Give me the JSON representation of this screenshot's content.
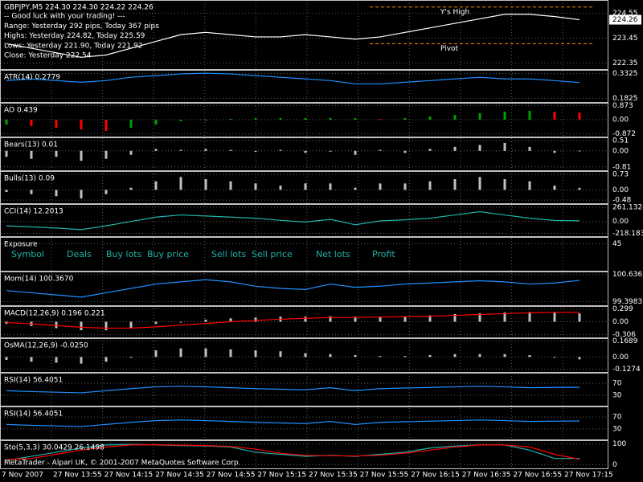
{
  "chart_data": [
    {
      "type": "line",
      "title": "GBPJPY,M5  224.30 224.30 224.22 224.26",
      "annotations": [
        "-- Good luck with your trading! ---",
        "Range: Yesterday 292 pips, Today 367 pips",
        "Highs: Yesterday 224.82, Today 225.59",
        "Lows: Yesterday 221.90, Today 221.92",
        "Close: Yesterday 222.54"
      ],
      "levels": [
        {
          "name": "Y's High",
          "value": 224.82,
          "color": "#ff8c00"
        },
        {
          "name": "Pivot",
          "value": 223.2,
          "color": "#ff8c00"
        }
      ],
      "last_price": 224.26,
      "ylim": [
        222.15,
        225.06
      ],
      "yticks": [
        224.55,
        223.45,
        222.35
      ],
      "series": [
        {
          "style": "line",
          "color": "#ffffff",
          "values": [
            223.2,
            223.0,
            222.8,
            222.6,
            222.7,
            223.0,
            223.3,
            223.6,
            223.7,
            223.6,
            223.5,
            223.5,
            223.6,
            223.5,
            223.4,
            223.5,
            223.7,
            223.9,
            224.1,
            224.3,
            224.5,
            224.5,
            224.4,
            224.26
          ]
        }
      ]
    },
    {
      "type": "line",
      "title": "ATR(14) 0.2779",
      "ylim": [
        0.17,
        0.345
      ],
      "yticks": [
        0.3325,
        0.1825
      ],
      "series": [
        {
          "style": "line",
          "color": "#1e90ff",
          "values": [
            0.29,
            0.3,
            0.29,
            0.28,
            0.29,
            0.31,
            0.32,
            0.33,
            0.335,
            0.33,
            0.32,
            0.31,
            0.3,
            0.29,
            0.27,
            0.27,
            0.28,
            0.29,
            0.3,
            0.31,
            0.3,
            0.3,
            0.29,
            0.2779
          ]
        }
      ]
    },
    {
      "type": "bar",
      "title": "AO 0.439",
      "ylim": [
        -0.95,
        0.95
      ],
      "yticks": [
        0.873,
        {
          "value": 0,
          "label": "0.00"
        },
        -0.872
      ],
      "series": [
        {
          "style": "bar",
          "up_color": "#00a000",
          "down_color": "#ff0000",
          "values": [
            -0.3,
            -0.4,
            -0.5,
            -0.6,
            -0.7,
            -0.5,
            -0.3,
            -0.1,
            0,
            0.05,
            0.1,
            0.1,
            0.1,
            0.1,
            0.1,
            0.05,
            0.1,
            0.2,
            0.3,
            0.4,
            0.5,
            0.55,
            0.5,
            0.439
          ]
        }
      ]
    },
    {
      "type": "bar",
      "title": "Bears(13) 0.01",
      "ylim": [
        -0.9,
        0.6
      ],
      "yticks": [
        0.51,
        {
          "value": 0,
          "label": "0.00"
        },
        -0.81
      ],
      "series": [
        {
          "style": "bar",
          "color": "#c0c0c0",
          "values": [
            -0.3,
            -0.4,
            -0.3,
            -0.5,
            -0.4,
            -0.2,
            0.1,
            0.05,
            0.1,
            0.05,
            -0.05,
            0.05,
            -0.1,
            0.0,
            -0.2,
            0.05,
            -0.1,
            0.1,
            0.2,
            0.3,
            0.4,
            0.2,
            -0.1,
            0.01
          ]
        }
      ]
    },
    {
      "type": "bar",
      "title": "Bulls(13) 0.09",
      "ylim": [
        -0.55,
        0.8
      ],
      "yticks": [
        0.73,
        {
          "value": 0,
          "label": "0.00"
        },
        -0.48
      ],
      "series": [
        {
          "style": "bar",
          "color": "#c0c0c0",
          "values": [
            -0.1,
            -0.2,
            -0.3,
            -0.4,
            -0.2,
            0.1,
            0.4,
            0.6,
            0.5,
            0.4,
            0.3,
            0.2,
            0.3,
            0.3,
            0.1,
            0.3,
            0.3,
            0.4,
            0.5,
            0.6,
            0.5,
            0.4,
            0.2,
            0.09
          ]
        }
      ]
    },
    {
      "type": "line",
      "title": "CCI(14) 12.2013",
      "ylim": [
        -240,
        290
      ],
      "yticks": [
        261.1324,
        {
          "value": 0,
          "label": "0.00"
        },
        -218.183
      ],
      "series": [
        {
          "style": "line",
          "color": "#20b2aa",
          "values": [
            -80,
            -100,
            -120,
            -150,
            -80,
            0,
            80,
            120,
            100,
            80,
            60,
            20,
            -10,
            40,
            -60,
            10,
            30,
            60,
            120,
            180,
            120,
            60,
            20,
            12.2013
          ]
        }
      ]
    },
    {
      "type": "table",
      "title": "Exposure",
      "columns": [
        "Symbol",
        "Deals",
        "Buy lots",
        "Buy price",
        "Sell lots",
        "Sell price",
        "Net lots",
        "Profit"
      ],
      "ylim": [
        -5,
        55
      ],
      "yticks": [
        45
      ]
    },
    {
      "type": "line",
      "title": "Mom(14) 100.3670",
      "ylim": [
        99.3,
        100.7
      ],
      "yticks": [
        100.6361,
        99.3983
      ],
      "series": [
        {
          "style": "line",
          "color": "#1e90ff",
          "values": [
            99.9,
            99.8,
            99.7,
            99.6,
            99.8,
            100.0,
            100.2,
            100.3,
            100.4,
            100.3,
            100.1,
            100.0,
            99.95,
            100.2,
            100.05,
            100.1,
            100.2,
            100.25,
            100.3,
            100.35,
            100.3,
            100.2,
            100.25,
            100.367
          ]
        }
      ]
    },
    {
      "type": "bar",
      "title": "MACD(12,26,9) 0.196 0.221",
      "ylim": [
        -0.33,
        0.33
      ],
      "yticks": [
        0.299,
        {
          "value": 0,
          "label": "0.00"
        },
        -0.306
      ],
      "series": [
        {
          "style": "bar",
          "color": "#c0c0c0",
          "values": [
            -0.05,
            -0.1,
            -0.15,
            -0.2,
            -0.2,
            -0.15,
            -0.05,
            0,
            0.05,
            0.08,
            0.1,
            0.12,
            0.12,
            0.13,
            0.12,
            0.12,
            0.13,
            0.15,
            0.18,
            0.2,
            0.22,
            0.23,
            0.22,
            0.196
          ]
        },
        {
          "style": "line",
          "color": "#ff0000",
          "values": [
            -0.02,
            -0.05,
            -0.09,
            -0.13,
            -0.15,
            -0.15,
            -0.12,
            -0.08,
            -0.04,
            0,
            0.03,
            0.06,
            0.08,
            0.1,
            0.1,
            0.11,
            0.12,
            0.13,
            0.15,
            0.17,
            0.19,
            0.21,
            0.22,
            0.221
          ]
        }
      ]
    },
    {
      "type": "bar",
      "title": "OsMA(12,26,9) -0.0250",
      "ylim": [
        -0.14,
        0.18
      ],
      "yticks": [
        0.1689,
        {
          "value": 0,
          "label": "0.00"
        },
        -0.1274
      ],
      "series": [
        {
          "style": "bar",
          "color": "#c0c0c0",
          "values": [
            -0.03,
            -0.05,
            -0.06,
            -0.07,
            -0.05,
            0,
            0.07,
            0.09,
            0.09,
            0.08,
            0.07,
            0.06,
            0.04,
            0.03,
            0.02,
            0.01,
            0.01,
            0.02,
            0.03,
            0.03,
            0.03,
            0.02,
            0,
            -0.025
          ]
        }
      ]
    },
    {
      "type": "line",
      "title": "RSI(14) 56.4051",
      "ylim": [
        0,
        100
      ],
      "yticks": [
        70,
        30
      ],
      "series": [
        {
          "style": "line",
          "color": "#1e90ff",
          "values": [
            45,
            42,
            40,
            38,
            45,
            52,
            58,
            60,
            58,
            55,
            52,
            50,
            48,
            55,
            45,
            52,
            54,
            56,
            58,
            60,
            58,
            55,
            56,
            56.4051
          ]
        }
      ]
    },
    {
      "type": "line",
      "title": "RSI(14) 56.4051",
      "ylim": [
        0,
        100
      ],
      "yticks": [
        70,
        30
      ],
      "series": [
        {
          "style": "line",
          "color": "#1e90ff",
          "values": [
            45,
            42,
            40,
            38,
            45,
            52,
            58,
            60,
            58,
            55,
            52,
            50,
            48,
            55,
            45,
            52,
            54,
            56,
            58,
            60,
            58,
            55,
            56,
            56.4051
          ]
        }
      ]
    },
    {
      "type": "line",
      "title": "Sto(5,3,3) 30.0429 26.1498",
      "ylim": [
        -10,
        110
      ],
      "yticks": [
        100,
        0
      ],
      "series": [
        {
          "style": "line",
          "color": "#20b2aa",
          "values": [
            20,
            40,
            60,
            80,
            95,
            98,
            95,
            92,
            90,
            85,
            60,
            50,
            40,
            45,
            40,
            50,
            60,
            80,
            90,
            95,
            95,
            70,
            30,
            30.0429
          ]
        },
        {
          "style": "line",
          "color": "#ff0000",
          "values": [
            25,
            30,
            50,
            70,
            85,
            95,
            96,
            94,
            92,
            88,
            75,
            55,
            45,
            43,
            42,
            45,
            55,
            70,
            85,
            95,
            95,
            85,
            50,
            26.1498
          ]
        }
      ]
    }
  ],
  "time_axis": {
    "labels": [
      "7 Nov 2007",
      "27 Nov 13:55",
      "27 Nov 14:15",
      "27 Nov 14:35",
      "27 Nov 14:55",
      "27 Nov 15:15",
      "27 Nov 15:35",
      "27 Nov 15:55",
      "27 Nov 16:15",
      "27 Nov 16:35",
      "27 Nov 16:55",
      "27 Nov 17:15"
    ]
  },
  "footer": "MetaTrader - Alpari UK, © 2001-2007 MetaQuotes Software Corp."
}
